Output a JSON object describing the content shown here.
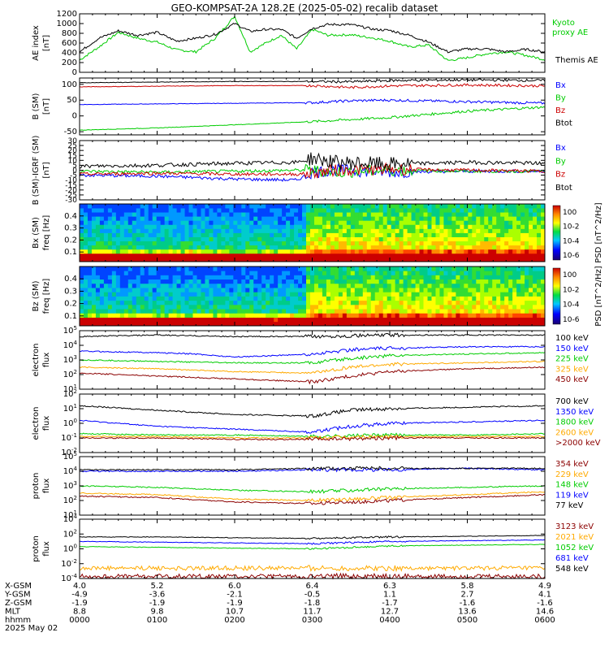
{
  "title": "GEO-KOMPSAT-2A 128.2E (2025-05-02) recalib dataset",
  "date_label": "2025 May 02",
  "colors": {
    "black": "#000000",
    "blue": "#0000ff",
    "green": "#00cc00",
    "red": "#cc0000",
    "orange": "#ffaa00",
    "darkred": "#8b0000"
  },
  "chart_data": [
    {
      "type": "line",
      "panel": "ae",
      "ylabel": "AE index [nT]",
      "ylim": [
        0,
        1200
      ],
      "yticks": [
        "0",
        "200",
        "400",
        "600",
        "800",
        "1000",
        "1200"
      ],
      "series": [
        {
          "name": "Kyoto proxy AE",
          "color": "#00cc00",
          "x": [
            0,
            0.25,
            0.5,
            0.75,
            1,
            1.25,
            1.5,
            1.75,
            2,
            2.2,
            2.4,
            2.6,
            2.8,
            3,
            3.2,
            3.5,
            3.8,
            4,
            4.25,
            4.5,
            4.75,
            5,
            5.25,
            5.5,
            5.75,
            6
          ],
          "values": [
            250,
            520,
            820,
            700,
            620,
            460,
            420,
            700,
            1150,
            420,
            600,
            760,
            480,
            880,
            760,
            770,
            700,
            640,
            520,
            560,
            240,
            300,
            380,
            420,
            350,
            260
          ]
        },
        {
          "name": "Themis AE",
          "color": "#000000",
          "x": [
            0,
            0.25,
            0.5,
            0.75,
            1,
            1.25,
            1.5,
            1.75,
            2,
            2.2,
            2.4,
            2.6,
            2.8,
            3,
            3.2,
            3.5,
            3.8,
            4,
            4.25,
            4.5,
            4.75,
            5,
            5.25,
            5.5,
            5.75,
            6
          ],
          "values": [
            420,
            700,
            850,
            760,
            820,
            640,
            700,
            780,
            1000,
            840,
            880,
            880,
            700,
            900,
            980,
            980,
            880,
            860,
            760,
            620,
            420,
            480,
            480,
            420,
            470,
            420
          ]
        }
      ]
    },
    {
      "type": "line",
      "panel": "b_sm",
      "ylabel": "B (SM) [nT]",
      "ylim": [
        -60,
        120
      ],
      "yticks": [
        "-50",
        "0",
        "50",
        "100"
      ],
      "series": [
        {
          "name": "Bx",
          "color": "#0000ff",
          "x": [
            0,
            1,
            2,
            3,
            3.5,
            4,
            5,
            6
          ],
          "values": [
            36,
            38,
            40,
            42,
            48,
            50,
            45,
            40
          ]
        },
        {
          "name": "By",
          "color": "#00cc00",
          "x": [
            0,
            1,
            2,
            3,
            4,
            5,
            6
          ],
          "values": [
            -45,
            -38,
            -28,
            -18,
            -5,
            15,
            28
          ]
        },
        {
          "name": "Bz",
          "color": "#cc0000",
          "x": [
            0,
            1,
            2,
            3,
            3.5,
            4,
            5,
            6
          ],
          "values": [
            92,
            94,
            96,
            96,
            90,
            95,
            98,
            95
          ]
        },
        {
          "name": "Btot",
          "color": "#000000",
          "x": [
            0,
            1,
            2,
            3,
            3.5,
            4,
            5,
            6
          ],
          "values": [
            105,
            107,
            109,
            109,
            108,
            112,
            114,
            112
          ]
        }
      ]
    },
    {
      "type": "line",
      "panel": "b_diff",
      "ylabel": "B (SM)-IGRF (SM) [nT]",
      "ylim": [
        -30,
        30
      ],
      "yticks": [
        "-30",
        "-25",
        "-20",
        "-15",
        "-10",
        "-5",
        "0",
        "5",
        "10",
        "15",
        "20",
        "25",
        "30"
      ],
      "series": [
        {
          "name": "Bx",
          "color": "#0000ff",
          "x": [
            0,
            1,
            2,
            2.8,
            3,
            3.3,
            4,
            5,
            6
          ],
          "values": [
            -5,
            -6,
            -9,
            -10,
            -2,
            0,
            -2,
            -1,
            -1
          ]
        },
        {
          "name": "By",
          "color": "#00cc00",
          "x": [
            0,
            1,
            2,
            2.8,
            3,
            3.3,
            4,
            5,
            6
          ],
          "values": [
            -1,
            -2,
            -1,
            0,
            0,
            -2,
            0,
            -1,
            -1
          ]
        },
        {
          "name": "Bz",
          "color": "#cc0000",
          "x": [
            0,
            1,
            2,
            2.8,
            3,
            3.3,
            4,
            5,
            6
          ],
          "values": [
            -4,
            -3,
            -4,
            -4,
            -3,
            0,
            1,
            0,
            -1
          ]
        },
        {
          "name": "Btot",
          "color": "#000000",
          "x": [
            0,
            1,
            2,
            2.8,
            3,
            3.3,
            4,
            5,
            6
          ],
          "values": [
            4,
            5,
            7,
            8,
            12,
            8,
            6,
            8,
            7
          ]
        }
      ]
    },
    {
      "type": "heatmap",
      "panel": "bx_psd",
      "ylabel": "Bx (SM) freq [Hz]",
      "ylim": [
        0.02,
        0.5
      ],
      "yticks": [
        "0.1",
        "0.2",
        "0.3",
        "0.4"
      ],
      "colorbar_label": "PSD [nT^2/Hz]",
      "colorbar_ticks": [
        "10^0",
        "10^-2",
        "10^-4",
        "10^-6"
      ]
    },
    {
      "type": "heatmap",
      "panel": "bz_psd",
      "ylabel": "Bz (SM) freq [Hz]",
      "ylim": [
        0.02,
        0.5
      ],
      "yticks": [
        "0.1",
        "0.2",
        "0.3",
        "0.4"
      ],
      "colorbar_label": "PSD [nT^2/Hz]",
      "colorbar_ticks": [
        "10^0",
        "10^-2",
        "10^-4",
        "10^-6"
      ]
    },
    {
      "type": "line",
      "panel": "e_flux_low",
      "log": true,
      "ylabel": "electron flux",
      "ylim": [
        1,
        5
      ],
      "yticks": [
        "10^1",
        "10^2",
        "10^3",
        "10^4",
        "10^5"
      ],
      "series": [
        {
          "name": "100 keV",
          "color": "#000000",
          "x": [
            0,
            1,
            2,
            3,
            4,
            5,
            6
          ],
          "values": [
            4.6,
            4.7,
            4.6,
            4.6,
            4.7,
            4.7,
            4.7
          ]
        },
        {
          "name": "150 keV",
          "color": "#0000ff",
          "x": [
            0,
            1,
            1.5,
            2,
            3,
            3.5,
            4,
            5,
            6
          ],
          "values": [
            3.6,
            3.5,
            3.4,
            3.2,
            3.4,
            3.7,
            3.8,
            3.9,
            3.9
          ]
        },
        {
          "name": "225 keV",
          "color": "#00cc00",
          "x": [
            0,
            1,
            2,
            3,
            3.5,
            4,
            5,
            6
          ],
          "values": [
            3.0,
            2.9,
            2.8,
            2.8,
            3.1,
            3.3,
            3.4,
            3.5
          ]
        },
        {
          "name": "325 keV",
          "color": "#ffaa00",
          "x": [
            0,
            1,
            2,
            3,
            3.5,
            4,
            5,
            6
          ],
          "values": [
            2.5,
            2.4,
            2.2,
            2.1,
            2.5,
            2.7,
            2.8,
            2.9
          ]
        },
        {
          "name": "450 keV",
          "color": "#8b0000",
          "x": [
            0,
            1,
            2,
            3,
            3.5,
            4,
            5,
            6
          ],
          "values": [
            2.1,
            1.9,
            1.7,
            1.5,
            1.9,
            2.2,
            2.4,
            2.5
          ]
        }
      ]
    },
    {
      "type": "line",
      "panel": "e_flux_high",
      "log": true,
      "ylabel": "electron flux",
      "ylim": [
        -2,
        2
      ],
      "yticks": [
        "10^-2",
        "10^-1",
        "10^0",
        "10^1",
        "10^2"
      ],
      "series": [
        {
          "name": "700 keV",
          "color": "#000000",
          "x": [
            0,
            1,
            2,
            3,
            3.5,
            4,
            5,
            6
          ],
          "values": [
            1.2,
            0.9,
            0.6,
            0.5,
            0.9,
            1.0,
            1.1,
            1.2
          ]
        },
        {
          "name": "1350 keV",
          "color": "#0000ff",
          "x": [
            0,
            1,
            2,
            3,
            3.5,
            4,
            5,
            6
          ],
          "values": [
            0.2,
            -0.2,
            -0.4,
            -0.6,
            -0.2,
            0.0,
            0.1,
            0.2
          ]
        },
        {
          "name": "1800 keV",
          "color": "#00cc00",
          "x": [
            0,
            1,
            2,
            3,
            4,
            5,
            6
          ],
          "values": [
            -0.7,
            -0.8,
            -0.8,
            -0.9,
            -0.8,
            -0.8,
            -0.7
          ]
        },
        {
          "name": "2600 keV",
          "color": "#ffaa00",
          "x": [
            0,
            1,
            2,
            3,
            4,
            5,
            6
          ],
          "values": [
            -0.9,
            -0.9,
            -1.0,
            -1.0,
            -0.9,
            -0.9,
            -0.9
          ]
        },
        {
          "name": ">2000 keV",
          "color": "#8b0000",
          "x": [
            0,
            1,
            2,
            3,
            4,
            5,
            6
          ],
          "values": [
            -1.0,
            -1.0,
            -1.1,
            -1.1,
            -1.0,
            -1.0,
            -1.0
          ]
        }
      ]
    },
    {
      "type": "line",
      "panel": "p_flux_low",
      "log": true,
      "ylabel": "proton flux",
      "ylim": [
        1,
        5
      ],
      "yticks": [
        "10^1",
        "10^2",
        "10^3",
        "10^4",
        "10^5"
      ],
      "series": [
        {
          "name": "354 keV",
          "color": "#8b0000",
          "x": [
            0,
            1,
            2,
            3,
            4,
            5,
            6
          ],
          "values": [
            2.3,
            2.2,
            1.9,
            1.8,
            2.0,
            2.2,
            2.4
          ]
        },
        {
          "name": "229 keV",
          "color": "#ffaa00",
          "x": [
            0,
            1,
            2,
            3,
            4,
            5,
            6
          ],
          "values": [
            2.5,
            2.4,
            2.1,
            2.0,
            2.2,
            2.4,
            2.6
          ]
        },
        {
          "name": "148 keV",
          "color": "#00cc00",
          "x": [
            0,
            1,
            2,
            3,
            4,
            5,
            6
          ],
          "values": [
            3.0,
            2.9,
            2.7,
            2.6,
            2.8,
            2.9,
            3.0
          ]
        },
        {
          "name": "119 keV",
          "color": "#0000ff",
          "x": [
            0,
            1,
            2,
            3,
            4,
            5,
            6
          ],
          "values": [
            4.0,
            4.0,
            4.0,
            4.1,
            4.1,
            4.2,
            4.1
          ]
        },
        {
          "name": "77 keV",
          "color": "#000000",
          "x": [
            0,
            1,
            2,
            3,
            4,
            5,
            6
          ],
          "values": [
            4.1,
            4.1,
            4.1,
            4.2,
            4.2,
            4.2,
            4.2
          ]
        }
      ]
    },
    {
      "type": "line",
      "panel": "p_flux_high",
      "log": true,
      "ylabel": "proton flux",
      "ylim": [
        -4,
        4
      ],
      "yticks": [
        "10^-4",
        "10^-2",
        "10^0",
        "10^2",
        "10^4"
      ],
      "series": [
        {
          "name": "3123 keV",
          "color": "#8b0000",
          "x": [
            0,
            1,
            2,
            3,
            4,
            5,
            6
          ],
          "values": [
            -3.7,
            -3.7,
            -3.7,
            -3.7,
            -3.7,
            -3.7,
            -3.7
          ]
        },
        {
          "name": "2021 keV",
          "color": "#ffaa00",
          "x": [
            0,
            1,
            2,
            3,
            4,
            5,
            6
          ],
          "values": [
            -2.6,
            -2.6,
            -2.6,
            -2.6,
            -2.6,
            -2.6,
            -2.6
          ]
        },
        {
          "name": "1052 keV",
          "color": "#00cc00",
          "x": [
            0,
            1,
            2,
            3,
            4,
            5,
            6
          ],
          "values": [
            0.3,
            0.2,
            0.1,
            0.0,
            0.4,
            0.5,
            0.6
          ]
        },
        {
          "name": "681 keV",
          "color": "#0000ff",
          "x": [
            0,
            1,
            2,
            3,
            4,
            5,
            6
          ],
          "values": [
            1.0,
            0.9,
            0.8,
            0.7,
            1.0,
            1.1,
            1.2
          ]
        },
        {
          "name": "548 keV",
          "color": "#000000",
          "x": [
            0,
            1,
            2,
            3,
            4,
            5,
            6
          ],
          "values": [
            1.6,
            1.6,
            1.5,
            1.4,
            1.6,
            1.7,
            1.8
          ]
        }
      ]
    }
  ],
  "ephemeris": {
    "row_labels": [
      "X-GSM",
      "Y-GSM",
      "Z-GSM",
      "MLT",
      "hhmm"
    ],
    "columns": [
      [
        "4.0",
        "-4.9",
        "-1.9",
        "8.8",
        "0000"
      ],
      [
        "5.2",
        "-3.6",
        "-1.9",
        "9.8",
        "0100"
      ],
      [
        "6.0",
        "-2.1",
        "-1.9",
        "10.7",
        "0200"
      ],
      [
        "6.4",
        "-0.5",
        "-1.8",
        "11.7",
        "0300"
      ],
      [
        "6.3",
        "1.1",
        "-1.7",
        "12.7",
        "0400"
      ],
      [
        "5.8",
        "2.7",
        "-1.6",
        "13.6",
        "0500"
      ],
      [
        "4.9",
        "4.1",
        "-1.6",
        "14.6",
        "0600"
      ]
    ]
  }
}
